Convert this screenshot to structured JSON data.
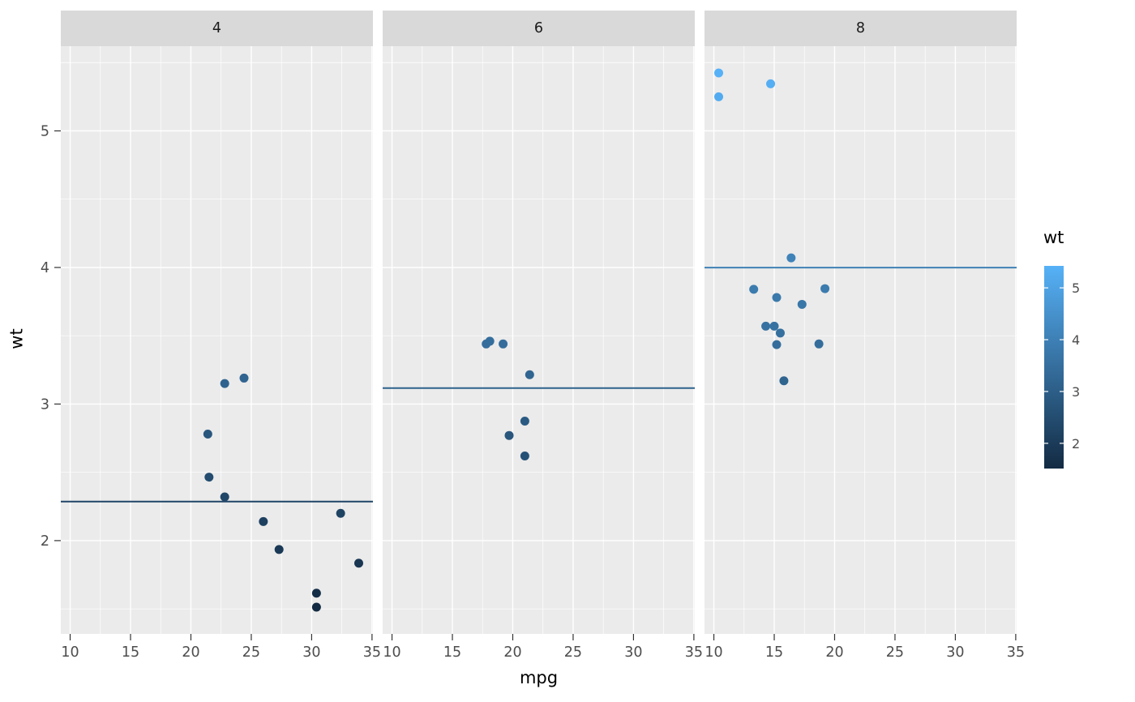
{
  "chart_data": {
    "type": "scatter",
    "title": "",
    "xlabel": "mpg",
    "ylabel": "wt",
    "x_ticks": [
      10,
      15,
      20,
      25,
      30,
      35
    ],
    "y_ticks": [
      2,
      3,
      4,
      5
    ],
    "x_minor_ticks": [
      12.5,
      17.5,
      22.5,
      27.5,
      32.5
    ],
    "y_minor_ticks": [
      1.5,
      2.5,
      3.5,
      4.5,
      5.5
    ],
    "x_domain": [
      9.225,
      35.075
    ],
    "y_domain": [
      1.317,
      5.62
    ],
    "grid": true,
    "panel_bg": "#EBEBEB",
    "strip_bg": "#D9D9D9",
    "gridline_color": "#FFFFFF",
    "facets": [
      {
        "label": "4",
        "mean_line_y": 2.286,
        "points": [
          {
            "mpg": 22.8,
            "wt": 2.32
          },
          {
            "mpg": 24.4,
            "wt": 3.19
          },
          {
            "mpg": 22.8,
            "wt": 3.15
          },
          {
            "mpg": 32.4,
            "wt": 2.2
          },
          {
            "mpg": 30.4,
            "wt": 1.615
          },
          {
            "mpg": 33.9,
            "wt": 1.835
          },
          {
            "mpg": 21.5,
            "wt": 2.465
          },
          {
            "mpg": 27.3,
            "wt": 1.935
          },
          {
            "mpg": 26.0,
            "wt": 2.14
          },
          {
            "mpg": 30.4,
            "wt": 1.513
          },
          {
            "mpg": 21.4,
            "wt": 2.78
          }
        ]
      },
      {
        "label": "6",
        "mean_line_y": 3.117,
        "points": [
          {
            "mpg": 21.0,
            "wt": 2.62
          },
          {
            "mpg": 21.0,
            "wt": 2.875
          },
          {
            "mpg": 21.4,
            "wt": 3.215
          },
          {
            "mpg": 18.1,
            "wt": 3.46
          },
          {
            "mpg": 19.2,
            "wt": 3.44
          },
          {
            "mpg": 17.8,
            "wt": 3.44
          },
          {
            "mpg": 19.7,
            "wt": 2.77
          }
        ]
      },
      {
        "label": "8",
        "mean_line_y": 3.999,
        "points": [
          {
            "mpg": 18.7,
            "wt": 3.44
          },
          {
            "mpg": 14.3,
            "wt": 3.57
          },
          {
            "mpg": 16.4,
            "wt": 4.07
          },
          {
            "mpg": 17.3,
            "wt": 3.73
          },
          {
            "mpg": 15.2,
            "wt": 3.78
          },
          {
            "mpg": 10.4,
            "wt": 5.25
          },
          {
            "mpg": 10.4,
            "wt": 5.424
          },
          {
            "mpg": 14.7,
            "wt": 5.345
          },
          {
            "mpg": 15.5,
            "wt": 3.52
          },
          {
            "mpg": 15.2,
            "wt": 3.435
          },
          {
            "mpg": 13.3,
            "wt": 3.84
          },
          {
            "mpg": 19.2,
            "wt": 3.845
          },
          {
            "mpg": 15.8,
            "wt": 3.17
          },
          {
            "mpg": 15.0,
            "wt": 3.57
          }
        ]
      }
    ],
    "legend": {
      "title": "wt",
      "ticks": [
        2,
        3,
        4,
        5
      ],
      "domain": [
        1.513,
        5.424
      ],
      "color_low": "#132B43",
      "color_high": "#56B1F7",
      "position": "right"
    }
  }
}
